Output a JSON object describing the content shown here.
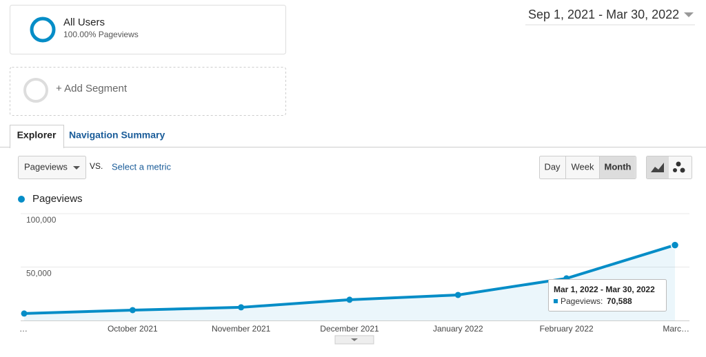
{
  "segments": {
    "active": {
      "name": "All Users",
      "detail": "100.00% Pageviews"
    },
    "add": "+ Add Segment"
  },
  "date_range": "Sep 1, 2021 - Mar 30, 2022",
  "tabs": [
    "Explorer",
    "Navigation Summary"
  ],
  "metric_selector": {
    "metric": "Pageviews",
    "vs": "VS.",
    "select": "Select a metric"
  },
  "granularity": [
    "Day",
    "Week",
    "Month"
  ],
  "chart_data": {
    "type": "line",
    "categories": [
      "…",
      "October 2021",
      "November 2021",
      "December 2021",
      "January 2022",
      "February 2022",
      "Marc…"
    ],
    "series": [
      {
        "name": "Pageviews",
        "color": "#058dc7",
        "values": [
          6500,
          9700,
          12300,
          19400,
          23900,
          39400,
          70588
        ]
      }
    ],
    "ylim": [
      0,
      100000
    ],
    "yticks": [
      {
        "value": 50000,
        "label": "50,000"
      },
      {
        "value": 100000,
        "label": "100,000"
      }
    ],
    "grid": true,
    "tooltip": {
      "title": "Mar 1, 2022 - Mar 30, 2022",
      "label": "Pageviews:",
      "value": "70,588"
    }
  }
}
